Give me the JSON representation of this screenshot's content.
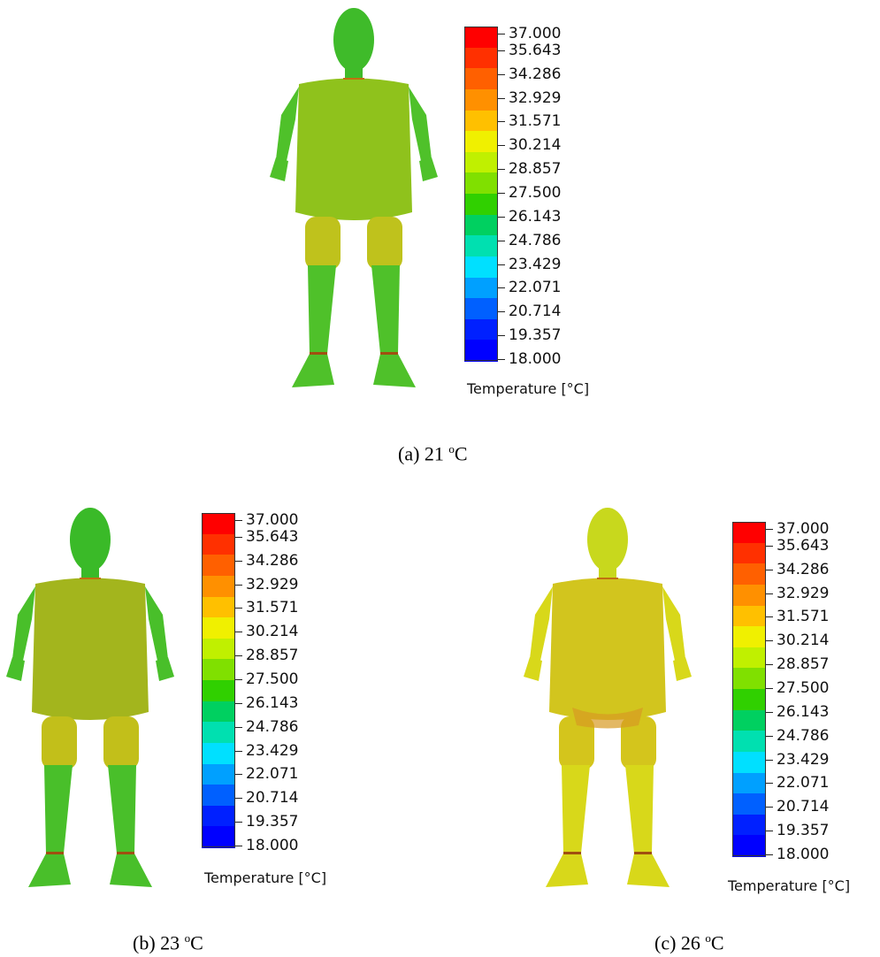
{
  "scale_labels": [
    "37.000",
    "35.643",
    "34.286",
    "32.929",
    "31.571",
    "30.214",
    "28.857",
    "27.500",
    "26.143",
    "24.786",
    "23.429",
    "22.071",
    "20.714",
    "19.357",
    "18.000"
  ],
  "scale_title": "Temperature [°C]",
  "scale_colors": [
    "#ff0000",
    "#ff3000",
    "#ff6000",
    "#ff9000",
    "#ffc000",
    "#f0f000",
    "#c0f000",
    "#80e000",
    "#30d000",
    "#00d060",
    "#00e0b0",
    "#00e0ff",
    "#00a0ff",
    "#0060ff",
    "#0020ff",
    "#0000ff"
  ],
  "panels": [
    {
      "id": "a",
      "caption_prefix": "(a) 21 ",
      "caption_deg": "o",
      "caption_unit": "C",
      "body": "#4fc12a",
      "torso": "#8fc21c",
      "head": "#3fbb2a",
      "knee": "#bfc21c"
    },
    {
      "id": "b",
      "caption_prefix": "(b) 23 ",
      "caption_deg": "o",
      "caption_unit": "C",
      "body": "#49bf2a",
      "torso": "#a3b51d",
      "head": "#3aba28",
      "knee": "#c2bf1a"
    },
    {
      "id": "c",
      "caption_prefix": "(c) 26 ",
      "caption_deg": "o",
      "caption_unit": "C",
      "body": "#d8d81a",
      "torso": "#d2c51e",
      "head": "#c8d81d",
      "knee": "#d4c51c"
    }
  ]
}
